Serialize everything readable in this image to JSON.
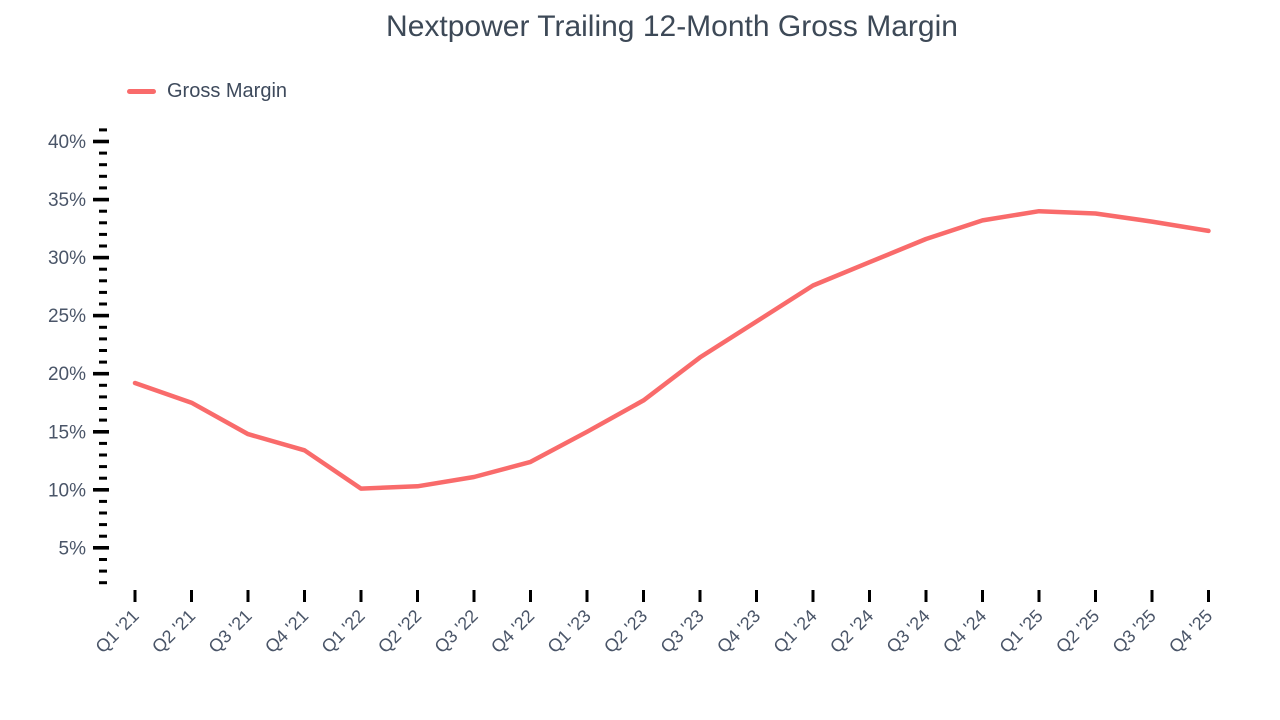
{
  "window": {
    "background": "#ffffff"
  },
  "chart_data": {
    "type": "line",
    "title": "Nextpower Trailing 12-Month Gross Margin",
    "legend": {
      "position": "top-left",
      "items": [
        {
          "label": "Gross Margin",
          "color": "#f96b6b"
        }
      ]
    },
    "categories": [
      "Q1 '21",
      "Q2 '21",
      "Q3 '21",
      "Q4 '21",
      "Q1 '22",
      "Q2 '22",
      "Q3 '22",
      "Q4 '22",
      "Q1 '23",
      "Q2 '23",
      "Q3 '23",
      "Q4 '23",
      "Q1 '24",
      "Q2 '24",
      "Q3 '24",
      "Q4 '24",
      "Q1 '25",
      "Q2 '25",
      "Q3 '25",
      "Q4 '25"
    ],
    "series": [
      {
        "name": "Gross Margin",
        "color": "#f96b6b",
        "values": [
          19.2,
          17.5,
          14.8,
          13.4,
          10.1,
          10.3,
          11.1,
          12.4,
          15.0,
          17.7,
          21.4,
          24.5,
          27.6,
          29.6,
          31.6,
          33.2,
          34.0,
          33.8,
          33.1,
          32.3
        ]
      }
    ],
    "xlabel": "",
    "ylabel": "",
    "y_axis": {
      "unit": "%",
      "major_ticks": [
        5,
        10,
        15,
        20,
        25,
        30,
        35,
        40
      ],
      "major_tick_labels": [
        "5%",
        "10%",
        "15%",
        "20%",
        "25%",
        "30%",
        "35%",
        "40%"
      ],
      "minor_tick_step": 1,
      "min": 2,
      "max": 41
    },
    "x_axis": {
      "label_rotation_deg": -45
    },
    "ylim": [
      2,
      41
    ],
    "grid": false,
    "colors": {
      "line": "#f96b6b",
      "tick": "#000000",
      "axis_label": "#4a5568",
      "title": "#3d4957"
    }
  }
}
